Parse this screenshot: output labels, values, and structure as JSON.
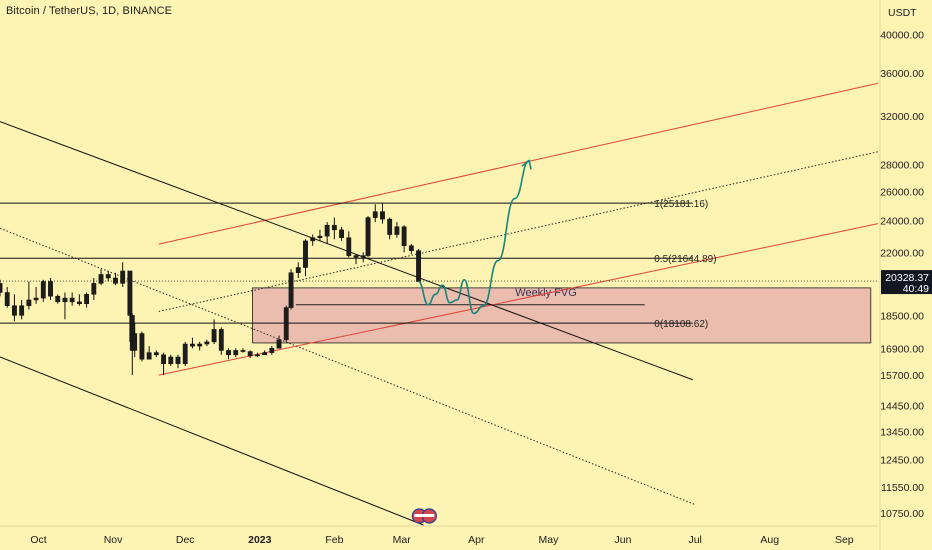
{
  "header": {
    "symbol_title": "Bitcoin / TetherUS, 1D, BINANCE",
    "currency": "USDT"
  },
  "price_badge": {
    "price": "20328.37",
    "countdown": "40:49",
    "color": "#131722"
  },
  "colors": {
    "background": "#fdf3b3",
    "channel_red": "#e0433a",
    "projection_teal": "#14877d",
    "fvg_fill": "#e8b3ad",
    "candle_body": "#111111"
  },
  "chart_data": {
    "type": "candlestick",
    "title": "Bitcoin / TetherUS, 1D, BINANCE",
    "x_tick_labels": [
      "Oct",
      "Nov",
      "Dec",
      "2023",
      "Feb",
      "Mar",
      "Apr",
      "May",
      "Jun",
      "Jul",
      "Aug",
      "Sep"
    ],
    "y_tick_labels": [
      10750,
      11550,
      12450,
      13450,
      14450,
      15700,
      16900,
      18500,
      20328.37,
      22000,
      24000,
      26000,
      28000,
      32000,
      36000,
      40000
    ],
    "y_scale": "log",
    "y_range": [
      10400,
      44000
    ],
    "x_range": [
      "2022-09-15",
      "2023-09-15"
    ],
    "current_price": 20328.37,
    "candles": [
      [
        "2022-09-15",
        20200,
        20400,
        19500,
        19700
      ],
      [
        "2022-09-18",
        19700,
        20000,
        18900,
        19000
      ],
      [
        "2022-09-21",
        19000,
        19600,
        18200,
        18500
      ],
      [
        "2022-09-24",
        18500,
        19300,
        18300,
        19000
      ],
      [
        "2022-09-27",
        19000,
        20300,
        18800,
        19300
      ],
      [
        "2022-09-30",
        19300,
        20000,
        19100,
        19400
      ],
      [
        "2022-10-03",
        19400,
        20400,
        19200,
        20300
      ],
      [
        "2022-10-06",
        20300,
        20500,
        19300,
        19500
      ],
      [
        "2022-10-09",
        19500,
        19600,
        19100,
        19200
      ],
      [
        "2022-10-12",
        19200,
        19700,
        18300,
        19400
      ],
      [
        "2022-10-15",
        19400,
        19700,
        19000,
        19200
      ],
      [
        "2022-10-18",
        19200,
        19600,
        19000,
        19100
      ],
      [
        "2022-10-21",
        19100,
        19700,
        18900,
        19600
      ],
      [
        "2022-10-24",
        19600,
        20500,
        19300,
        20200
      ],
      [
        "2022-10-27",
        20200,
        21000,
        20100,
        20700
      ],
      [
        "2022-10-30",
        20700,
        20900,
        20300,
        20500
      ],
      [
        "2022-11-02",
        20500,
        20800,
        20100,
        20200
      ],
      [
        "2022-11-05",
        20200,
        21400,
        20000,
        20900
      ],
      [
        "2022-11-08",
        20900,
        20900,
        17200,
        18500
      ],
      [
        "2022-11-09",
        18500,
        18600,
        15700,
        16800
      ],
      [
        "2022-11-10",
        16800,
        18100,
        16500,
        17600
      ],
      [
        "2022-11-13",
        17600,
        17700,
        16300,
        16400
      ],
      [
        "2022-11-16",
        16400,
        17000,
        16400,
        16700
      ],
      [
        "2022-11-19",
        16700,
        16800,
        16500,
        16600
      ],
      [
        "2022-11-22",
        16600,
        16700,
        15700,
        16200
      ],
      [
        "2022-11-25",
        16200,
        16600,
        16100,
        16500
      ],
      [
        "2022-11-28",
        16500,
        16600,
        16000,
        16200
      ],
      [
        "2022-12-01",
        16200,
        17200,
        16100,
        17100
      ],
      [
        "2022-12-04",
        17100,
        17400,
        16900,
        17000
      ],
      [
        "2022-12-07",
        17000,
        17200,
        16800,
        17100
      ],
      [
        "2022-12-10",
        17100,
        17300,
        17000,
        17200
      ],
      [
        "2022-12-13",
        17200,
        18300,
        17100,
        17800
      ],
      [
        "2022-12-16",
        17800,
        17900,
        16600,
        16800
      ],
      [
        "2022-12-19",
        16800,
        16900,
        16400,
        16600
      ],
      [
        "2022-12-22",
        16600,
        16900,
        16500,
        16800
      ],
      [
        "2022-12-25",
        16800,
        16900,
        16700,
        16750
      ],
      [
        "2022-12-28",
        16750,
        16800,
        16450,
        16550
      ],
      [
        "2022-12-31",
        16550,
        16700,
        16500,
        16600
      ],
      [
        "2023-01-03",
        16600,
        16800,
        16600,
        16700
      ],
      [
        "2023-01-06",
        16700,
        17000,
        16600,
        16900
      ],
      [
        "2023-01-09",
        16900,
        17500,
        16900,
        17300
      ],
      [
        "2023-01-12",
        17300,
        19000,
        17200,
        18900
      ],
      [
        "2023-01-14",
        18900,
        21000,
        18800,
        20800
      ],
      [
        "2023-01-17",
        20800,
        21400,
        20500,
        21100
      ],
      [
        "2023-01-20",
        21100,
        22800,
        20600,
        22700
      ],
      [
        "2023-01-23",
        22700,
        23100,
        22400,
        22900
      ],
      [
        "2023-01-26",
        22900,
        23400,
        22700,
        23000
      ],
      [
        "2023-01-29",
        23000,
        23900,
        22500,
        23700
      ],
      [
        "2023-02-01",
        23700,
        24200,
        22800,
        23400
      ],
      [
        "2023-02-04",
        23400,
        23600,
        22700,
        22900
      ],
      [
        "2023-02-07",
        22900,
        23300,
        21700,
        21800
      ],
      [
        "2023-02-10",
        21800,
        21900,
        21300,
        21700
      ],
      [
        "2023-02-13",
        21700,
        22000,
        21400,
        21800
      ],
      [
        "2023-02-15",
        21800,
        24300,
        21700,
        24200
      ],
      [
        "2023-02-18",
        24200,
        25100,
        23900,
        24600
      ],
      [
        "2023-02-21",
        24600,
        25200,
        23800,
        24100
      ],
      [
        "2023-02-24",
        24100,
        24200,
        22800,
        23100
      ],
      [
        "2023-02-27",
        23100,
        23900,
        22900,
        23600
      ],
      [
        "2023-03-02",
        23600,
        23700,
        22000,
        22400
      ],
      [
        "2023-03-05",
        22400,
        22500,
        21900,
        22100
      ],
      [
        "2023-03-08",
        22100,
        22200,
        20300,
        20300
      ]
    ],
    "levels": [
      {
        "label": "1(25181.16)",
        "value": 25181.16
      },
      {
        "label": "0.5(21644.89)",
        "value": 21644.89
      },
      {
        "label": "0(18108.62)",
        "value": 18108.62
      }
    ],
    "zones": [
      {
        "label": "Weekly FVG",
        "top": 19950,
        "bottom": 17150
      }
    ],
    "trendlines": [
      {
        "style": "red",
        "from": [
          "2022-11-20",
          15700
        ],
        "to": [
          "2023-09-15",
          23800
        ]
      },
      {
        "style": "red",
        "from": [
          "2022-11-20",
          22500
        ],
        "to": [
          "2023-09-15",
          35000
        ]
      },
      {
        "style": "dotted",
        "from": [
          "2022-11-20",
          18700
        ],
        "to": [
          "2023-09-15",
          29000
        ]
      },
      {
        "style": "black",
        "from": [
          "2022-09-15",
          31500
        ],
        "to": [
          "2023-06-30",
          15500
        ]
      },
      {
        "style": "black",
        "from": [
          "2022-09-15",
          16500
        ],
        "to": [
          "2023-03-10",
          10400
        ]
      },
      {
        "style": "dotted",
        "from": [
          "2022-09-15",
          23500
        ],
        "to": [
          "2023-07-01",
          11000
        ]
      }
    ],
    "projection": [
      [
        "2023-03-08",
        20300
      ],
      [
        "2023-03-12",
        19050
      ],
      [
        "2023-03-15",
        19600
      ],
      [
        "2023-03-18",
        20100
      ],
      [
        "2023-03-21",
        19150
      ],
      [
        "2023-03-24",
        19300
      ],
      [
        "2023-03-27",
        20400
      ],
      [
        "2023-03-31",
        18600
      ],
      [
        "2023-04-04",
        19000
      ],
      [
        "2023-04-10",
        21500
      ],
      [
        "2023-04-17",
        25500
      ],
      [
        "2023-04-23",
        28300
      ]
    ]
  }
}
